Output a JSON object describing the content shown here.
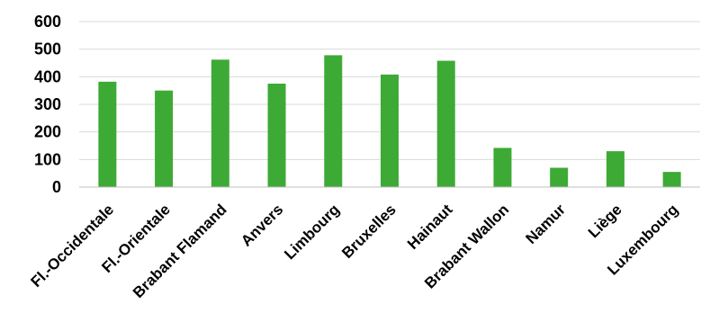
{
  "chart_data": {
    "type": "bar",
    "title": "",
    "xlabel": "",
    "ylabel": "",
    "categories": [
      "Fl.-Occidentale",
      "Fl.-Orientale",
      "Brabant Flamand",
      "Anvers",
      "Limbourg",
      "Bruxelles",
      "Hainaut",
      "Brabant Wallon",
      "Namur",
      "Liège",
      "Luxembourg"
    ],
    "values": [
      382,
      350,
      462,
      375,
      478,
      408,
      458,
      142,
      70,
      130,
      55
    ],
    "ylim": [
      0,
      600
    ],
    "yticks": [
      0,
      100,
      200,
      300,
      400,
      500,
      600
    ],
    "grid": true,
    "legend": "none",
    "colors": {
      "bar": "#3DAA35",
      "grid": "#D9D9D9",
      "axis": "#BFBFBF"
    }
  }
}
